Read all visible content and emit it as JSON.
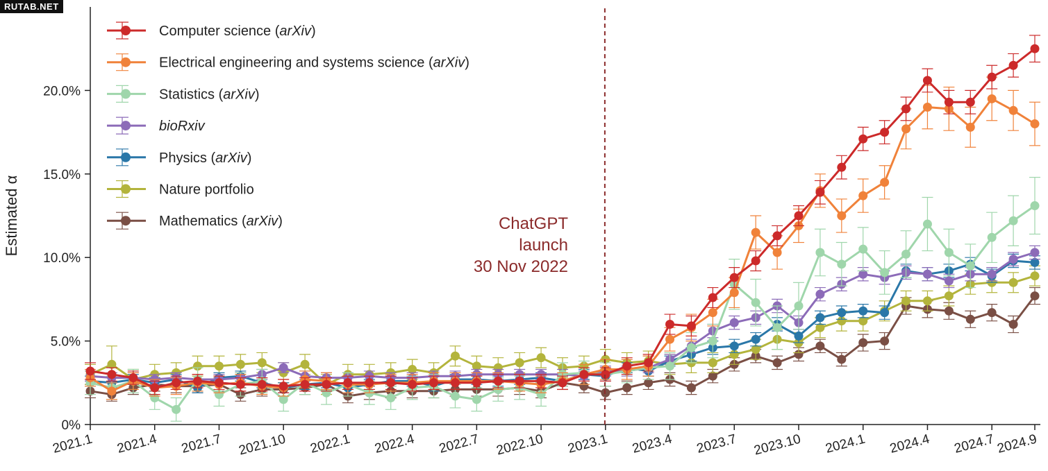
{
  "watermark": "RUTAB.NET",
  "chart_data": {
    "type": "line",
    "title": "",
    "xlabel": "",
    "ylabel": "Estimated α",
    "ylim": [
      0,
      25
    ],
    "yticks": [
      0,
      5,
      10,
      15,
      20
    ],
    "ytick_labels": [
      "0%",
      "5.0%",
      "10.0%",
      "15.0%",
      "20.0%"
    ],
    "x": [
      "2021.1",
      "2021.2",
      "2021.3",
      "2021.4",
      "2021.5",
      "2021.6",
      "2021.7",
      "2021.8",
      "2021.9",
      "2021.10",
      "2021.11",
      "2021.12",
      "2022.1",
      "2022.2",
      "2022.3",
      "2022.4",
      "2022.5",
      "2022.6",
      "2022.7",
      "2022.8",
      "2022.9",
      "2022.10",
      "2022.11",
      "2022.12",
      "2023.1",
      "2023.2",
      "2023.3",
      "2023.4",
      "2023.5",
      "2023.6",
      "2023.7",
      "2023.8",
      "2023.9",
      "2023.10",
      "2023.11",
      "2023.12",
      "2024.1",
      "2024.2",
      "2024.3",
      "2024.4",
      "2024.5",
      "2024.6",
      "2024.7",
      "2024.8",
      "2024.9"
    ],
    "xtick_labels": [
      "2021.1",
      "2021.4",
      "2021.7",
      "2021.10",
      "2022.1",
      "2022.4",
      "2022.7",
      "2022.10",
      "2023.1",
      "2023.4",
      "2023.7",
      "2023.10",
      "2024.1",
      "2024.4",
      "2024.7",
      "2024.9"
    ],
    "legend_position": "top-left",
    "grid": false,
    "series": [
      {
        "name": "Computer science",
        "name_italic": "(arXiv)",
        "color": "#cc2a2a",
        "values": [
          3.2,
          3.0,
          2.8,
          2.2,
          2.5,
          2.6,
          2.5,
          2.4,
          2.4,
          2.3,
          2.4,
          2.4,
          2.5,
          2.5,
          2.5,
          2.4,
          2.5,
          2.5,
          2.5,
          2.6,
          2.6,
          2.6,
          2.5,
          3.0,
          3.0,
          3.5,
          3.7,
          6.0,
          5.9,
          7.6,
          8.8,
          9.8,
          11.3,
          12.5,
          13.9,
          15.4,
          17.1,
          17.5,
          18.9,
          20.6,
          19.3,
          19.3,
          20.8,
          21.5,
          22.5
        ],
        "err": [
          0.5,
          0.4,
          0.4,
          0.4,
          0.4,
          0.4,
          0.4,
          0.4,
          0.4,
          0.4,
          0.4,
          0.4,
          0.4,
          0.4,
          0.4,
          0.4,
          0.4,
          0.4,
          0.4,
          0.4,
          0.4,
          0.4,
          0.4,
          0.4,
          0.4,
          0.5,
          0.5,
          0.6,
          0.6,
          0.6,
          0.6,
          0.6,
          0.6,
          0.6,
          0.7,
          0.7,
          0.7,
          0.7,
          0.7,
          0.7,
          0.7,
          0.7,
          0.7,
          0.7,
          0.8
        ]
      },
      {
        "name": "Electrical engineering and systems science",
        "name_italic": "(arXiv)",
        "color": "#f0823a",
        "values": [
          2.8,
          2.0,
          2.6,
          2.2,
          2.3,
          2.5,
          2.4,
          2.5,
          2.3,
          2.2,
          2.7,
          2.6,
          2.4,
          2.4,
          2.5,
          2.5,
          2.6,
          2.6,
          2.6,
          2.6,
          2.5,
          2.4,
          2.6,
          3.0,
          3.3,
          3.3,
          3.5,
          5.1,
          5.8,
          6.7,
          7.9,
          11.5,
          10.3,
          11.9,
          14.0,
          12.5,
          13.7,
          14.5,
          17.7,
          19.0,
          18.9,
          17.8,
          19.5,
          18.8,
          18.0
        ],
        "err": [
          0.5,
          0.5,
          0.5,
          0.5,
          0.5,
          0.5,
          0.5,
          0.5,
          0.5,
          0.5,
          0.5,
          0.5,
          0.5,
          0.5,
          0.5,
          0.5,
          0.5,
          0.5,
          0.5,
          0.5,
          0.5,
          0.5,
          0.5,
          0.6,
          0.6,
          0.6,
          0.6,
          0.7,
          0.8,
          0.8,
          0.9,
          1.0,
          1.0,
          1.0,
          1.0,
          1.0,
          1.0,
          1.0,
          1.2,
          1.3,
          1.3,
          1.2,
          1.3,
          1.2,
          1.3
        ]
      },
      {
        "name": "Statistics",
        "name_italic": "(arXiv)",
        "color": "#9fd6ab",
        "values": [
          2.5,
          2.2,
          2.6,
          1.6,
          0.9,
          2.7,
          1.8,
          2.4,
          2.6,
          1.5,
          2.5,
          1.9,
          2.4,
          1.9,
          1.6,
          2.2,
          2.3,
          1.7,
          1.5,
          2.1,
          2.2,
          1.8,
          3.0,
          3.1,
          3.0,
          3.2,
          3.4,
          3.5,
          4.6,
          5.0,
          8.4,
          7.3,
          5.8,
          7.1,
          10.3,
          9.6,
          10.5,
          9.1,
          10.2,
          12.0,
          10.3,
          9.5,
          11.2,
          12.2,
          13.1
        ],
        "err": [
          0.7,
          0.7,
          0.7,
          0.7,
          0.7,
          0.7,
          0.7,
          0.7,
          0.7,
          0.7,
          0.7,
          0.7,
          0.7,
          0.7,
          0.7,
          0.7,
          0.7,
          0.7,
          0.7,
          0.7,
          0.7,
          0.7,
          0.7,
          0.7,
          0.7,
          0.7,
          0.7,
          0.8,
          0.9,
          1.0,
          1.5,
          1.4,
          1.3,
          1.4,
          1.4,
          1.3,
          1.3,
          1.3,
          1.4,
          1.6,
          1.4,
          1.3,
          1.5,
          1.5,
          1.7
        ]
      },
      {
        "name": "bioRxiv",
        "name_italic": "",
        "italic_all": true,
        "color": "#8c6bb8",
        "values": [
          2.9,
          2.8,
          2.8,
          2.7,
          2.8,
          2.7,
          2.7,
          2.8,
          3.0,
          3.4,
          2.9,
          2.8,
          2.8,
          2.9,
          2.8,
          2.8,
          2.9,
          2.9,
          3.0,
          3.0,
          3.0,
          3.0,
          3.0,
          2.9,
          3.2,
          3.2,
          3.4,
          3.9,
          4.7,
          5.6,
          6.1,
          6.4,
          7.1,
          6.1,
          7.8,
          8.4,
          9.0,
          8.8,
          9.1,
          9.0,
          8.6,
          9.0,
          9.0,
          9.9,
          10.3
        ],
        "err": [
          0.3,
          0.3,
          0.3,
          0.3,
          0.3,
          0.3,
          0.3,
          0.3,
          0.3,
          0.3,
          0.3,
          0.3,
          0.3,
          0.3,
          0.3,
          0.3,
          0.3,
          0.3,
          0.3,
          0.3,
          0.3,
          0.3,
          0.3,
          0.3,
          0.3,
          0.3,
          0.3,
          0.3,
          0.4,
          0.4,
          0.4,
          0.4,
          0.4,
          0.4,
          0.4,
          0.4,
          0.4,
          0.4,
          0.4,
          0.4,
          0.4,
          0.4,
          0.4,
          0.4,
          0.4
        ]
      },
      {
        "name": "Physics",
        "name_italic": "(arXiv)",
        "color": "#2a77a8",
        "values": [
          2.6,
          2.5,
          2.7,
          2.5,
          2.7,
          2.2,
          2.8,
          2.9,
          2.5,
          2.2,
          2.4,
          2.5,
          2.2,
          2.4,
          2.6,
          2.6,
          2.3,
          2.7,
          2.7,
          2.6,
          2.7,
          2.8,
          2.6,
          3.0,
          2.9,
          3.4,
          3.2,
          3.8,
          4.2,
          4.6,
          4.7,
          5.1,
          6.0,
          5.3,
          6.4,
          6.7,
          6.8,
          6.7,
          9.2,
          9.0,
          9.2,
          9.6,
          8.9,
          9.8,
          9.7
        ],
        "err": [
          0.3,
          0.3,
          0.3,
          0.3,
          0.3,
          0.3,
          0.3,
          0.3,
          0.3,
          0.3,
          0.3,
          0.3,
          0.3,
          0.3,
          0.3,
          0.3,
          0.3,
          0.3,
          0.3,
          0.3,
          0.3,
          0.3,
          0.3,
          0.3,
          0.3,
          0.3,
          0.3,
          0.3,
          0.4,
          0.4,
          0.4,
          0.4,
          0.4,
          0.4,
          0.4,
          0.4,
          0.4,
          0.4,
          0.4,
          0.4,
          0.4,
          0.4,
          0.4,
          0.4,
          0.4
        ]
      },
      {
        "name": "Nature portfolio",
        "name_italic": "",
        "color": "#b3b43c",
        "values": [
          3.0,
          3.6,
          2.7,
          3.0,
          3.1,
          3.5,
          3.5,
          3.6,
          3.7,
          3.1,
          3.6,
          2.4,
          3.0,
          3.0,
          3.1,
          3.3,
          3.1,
          4.1,
          3.5,
          3.4,
          3.7,
          4.0,
          3.4,
          3.5,
          3.9,
          3.7,
          3.8,
          3.6,
          3.7,
          3.7,
          4.2,
          4.5,
          5.1,
          4.9,
          5.8,
          6.2,
          6.2,
          6.8,
          7.4,
          7.4,
          7.7,
          8.4,
          8.5,
          8.5,
          8.9
        ],
        "err": [
          0.6,
          1.1,
          0.6,
          0.6,
          0.6,
          0.6,
          0.6,
          0.6,
          0.6,
          0.6,
          0.6,
          0.6,
          0.6,
          0.6,
          0.6,
          0.6,
          0.6,
          0.6,
          0.6,
          0.6,
          0.6,
          0.6,
          0.6,
          0.6,
          0.6,
          0.6,
          0.6,
          0.6,
          0.6,
          0.6,
          0.6,
          0.6,
          0.6,
          0.6,
          0.6,
          0.6,
          0.6,
          0.6,
          0.6,
          0.6,
          0.6,
          0.6,
          0.6,
          0.6,
          0.6
        ]
      },
      {
        "name": "Mathematics",
        "name_italic": "(arXiv)",
        "color": "#7a4f45",
        "values": [
          2.0,
          1.8,
          2.2,
          2.4,
          2.3,
          2.3,
          2.4,
          1.8,
          2.1,
          2.1,
          2.2,
          2.4,
          1.7,
          1.9,
          2.0,
          2.0,
          2.0,
          2.1,
          2.1,
          2.1,
          2.2,
          2.0,
          2.5,
          2.3,
          1.9,
          2.2,
          2.5,
          2.7,
          2.2,
          2.9,
          3.6,
          4.1,
          3.7,
          4.2,
          4.7,
          3.9,
          4.9,
          5.0,
          7.1,
          6.9,
          6.8,
          6.3,
          6.7,
          6.0,
          7.7
        ],
        "err": [
          0.4,
          0.4,
          0.4,
          0.4,
          0.4,
          0.4,
          0.4,
          0.4,
          0.4,
          0.4,
          0.4,
          0.4,
          0.4,
          0.4,
          0.4,
          0.4,
          0.4,
          0.4,
          0.4,
          0.4,
          0.4,
          0.4,
          0.4,
          0.4,
          0.4,
          0.4,
          0.4,
          0.4,
          0.4,
          0.4,
          0.4,
          0.4,
          0.4,
          0.4,
          0.4,
          0.4,
          0.5,
          0.5,
          0.5,
          0.5,
          0.5,
          0.5,
          0.5,
          0.5,
          0.5
        ]
      }
    ],
    "annotation": {
      "lines": [
        "ChatGPT",
        "launch",
        "30 Nov 2022"
      ],
      "color": "#8b2b2b",
      "marker_x": "2022.12"
    }
  }
}
